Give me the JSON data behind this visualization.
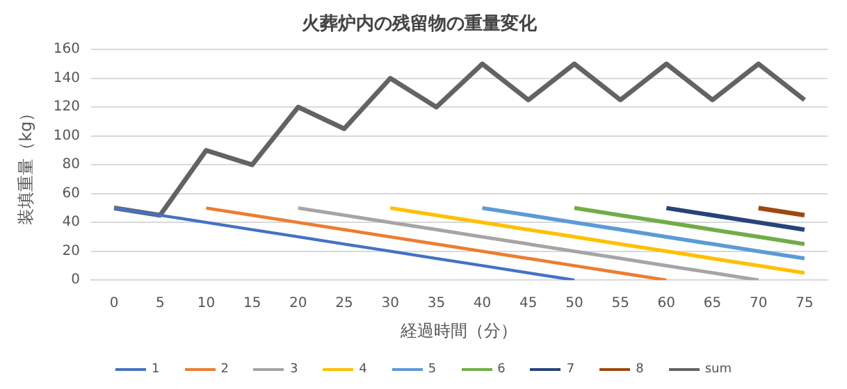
{
  "chart_data": {
    "type": "line",
    "title": "火葬炉内の残留物の重量変化",
    "xlabel": "経過時間（分）",
    "ylabel": "装填重量（kg）",
    "categories": [
      "0",
      "5",
      "10",
      "15",
      "20",
      "25",
      "30",
      "35",
      "40",
      "45",
      "50",
      "55",
      "60",
      "65",
      "70",
      "75"
    ],
    "ylim": [
      0,
      160
    ],
    "yticks": [
      0,
      20,
      40,
      60,
      80,
      100,
      120,
      140,
      160
    ],
    "grid": "y",
    "legend": "bottom",
    "marker": "none",
    "line_style": "solid",
    "series": [
      {
        "name": "1",
        "color": "#4472c4",
        "values": [
          50,
          45,
          40,
          35,
          30,
          25,
          20,
          15,
          10,
          5,
          0,
          null,
          null,
          null,
          null,
          null
        ]
      },
      {
        "name": "2",
        "color": "#ed7d31",
        "values": [
          null,
          null,
          50,
          45,
          40,
          35,
          30,
          25,
          20,
          15,
          10,
          5,
          0,
          null,
          null,
          null
        ]
      },
      {
        "name": "3",
        "color": "#a5a5a5",
        "values": [
          null,
          null,
          null,
          null,
          50,
          45,
          40,
          35,
          30,
          25,
          20,
          15,
          10,
          5,
          0,
          null
        ]
      },
      {
        "name": "4",
        "color": "#ffc000",
        "values": [
          null,
          null,
          null,
          null,
          null,
          null,
          50,
          45,
          40,
          35,
          30,
          25,
          20,
          15,
          10,
          5
        ]
      },
      {
        "name": "5",
        "color": "#5b9bd5",
        "values": [
          null,
          null,
          null,
          null,
          null,
          null,
          null,
          null,
          50,
          45,
          40,
          35,
          30,
          25,
          20,
          15
        ]
      },
      {
        "name": "6",
        "color": "#70ad47",
        "values": [
          null,
          null,
          null,
          null,
          null,
          null,
          null,
          null,
          null,
          null,
          50,
          45,
          40,
          35,
          30,
          25
        ]
      },
      {
        "name": "7",
        "color": "#264478",
        "values": [
          null,
          null,
          null,
          null,
          null,
          null,
          null,
          null,
          null,
          null,
          null,
          null,
          50,
          45,
          40,
          35
        ]
      },
      {
        "name": "8",
        "color": "#9e480e",
        "values": [
          null,
          null,
          null,
          null,
          null,
          null,
          null,
          null,
          null,
          null,
          null,
          null,
          null,
          null,
          50,
          45
        ]
      },
      {
        "name": "sum",
        "color": "#636363",
        "values": [
          50,
          45,
          90,
          80,
          120,
          105,
          140,
          120,
          150,
          125,
          150,
          125,
          150,
          125,
          150,
          125
        ]
      }
    ]
  }
}
